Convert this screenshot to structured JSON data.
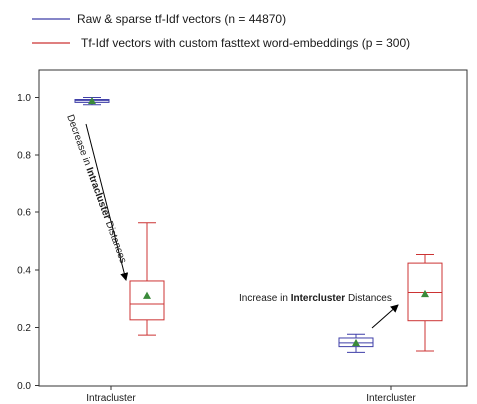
{
  "chart_data": {
    "type": "box",
    "categories": [
      "Intracluster",
      "Intercluster"
    ],
    "ylim": [
      0.0,
      1.0
    ],
    "yticks": [
      "0.0",
      "0.2",
      "0.4",
      "0.6",
      "0.8",
      "1.0"
    ],
    "grid": false,
    "legend_position": "top-left",
    "series": [
      {
        "name": "Raw & sparse tf-Idf vectors  (n = 44870)",
        "color": "#3f3fa8",
        "boxes": [
          {
            "category": "Intracluster",
            "whisker_low": 0.975,
            "q1": 0.983,
            "median": 0.989,
            "q3": 0.993,
            "whisker_high": 1.0,
            "mean": 0.988
          },
          {
            "category": "Intercluster",
            "whisker_low": 0.115,
            "q1": 0.135,
            "median": 0.148,
            "q3": 0.165,
            "whisker_high": 0.178,
            "mean": 0.148
          }
        ]
      },
      {
        "name": "Tf-Idf vectors with custom fasttext word-embeddings (p = 300)",
        "color": "#cc3333",
        "boxes": [
          {
            "category": "Intracluster",
            "whisker_low": 0.175,
            "q1": 0.228,
            "median": 0.283,
            "q3": 0.363,
            "whisker_high": 0.565,
            "mean": 0.312
          },
          {
            "category": "Intercluster",
            "whisker_low": 0.12,
            "q1": 0.225,
            "median": 0.323,
            "q3": 0.425,
            "whisker_high": 0.455,
            "mean": 0.318
          }
        ]
      }
    ],
    "mean_marker_color": "#3a8a3a",
    "annotations": [
      {
        "prefix": "Decrease in ",
        "bold": "Intracluster",
        "suffix": " Distances"
      },
      {
        "prefix": "Increase in ",
        "bold": "Intercluster",
        "suffix": " Distances"
      }
    ]
  }
}
